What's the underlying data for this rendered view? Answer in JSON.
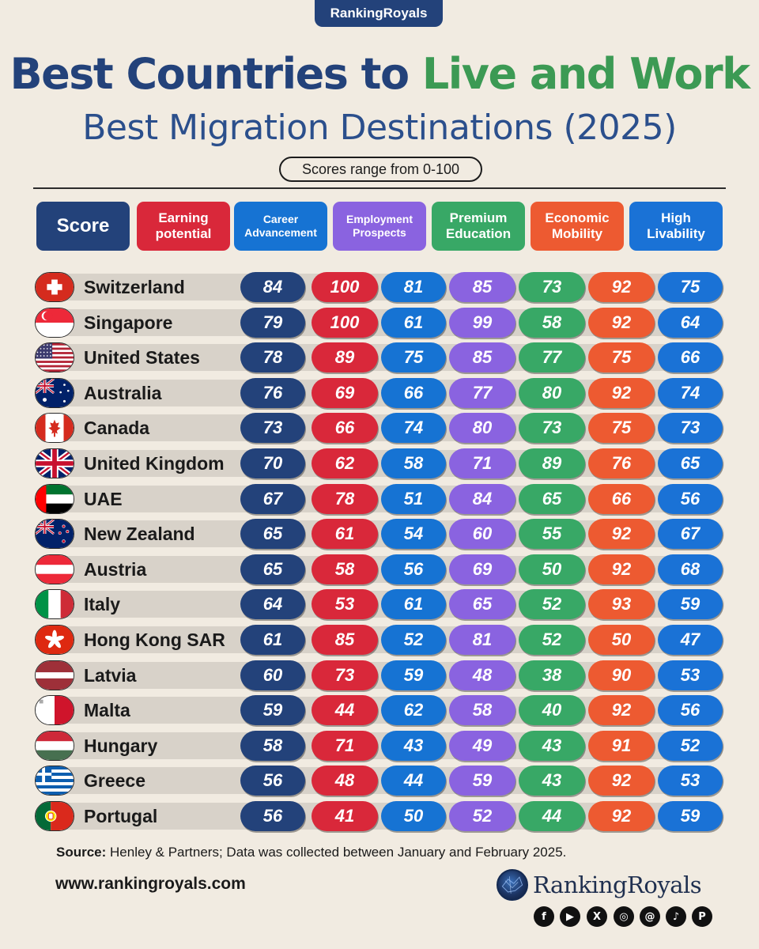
{
  "badge": "RankingRoyals",
  "title": {
    "part1": "Best Countries to ",
    "part2": "Live and Work"
  },
  "subtitle": "Best Migration Destinations (2025)",
  "range_note": "Scores range from 0-100",
  "colors": {
    "score": "#23427a",
    "earning": "#d9283a",
    "career": "#1673d3",
    "employment": "#8a63e0",
    "education": "#38a866",
    "mobility": "#ed5a31",
    "livability": "#1a72d6"
  },
  "source": {
    "label": "Source:",
    "text": " Henley & Partners; Data was collected between January and February 2025."
  },
  "website": "www.rankingroyals.com",
  "brand_name": "RankingRoyals",
  "social_icons": [
    "facebook-icon",
    "youtube-icon",
    "x-icon",
    "instagram-icon",
    "threads-icon",
    "tiktok-icon",
    "pinterest-icon"
  ],
  "chart_data": {
    "type": "table",
    "columns": [
      "Score",
      "Earning potential",
      "Career Advancement",
      "Employment Prospects",
      "Premium Education",
      "Economic Mobility",
      "High Livability"
    ],
    "column_lines": [
      [
        "Score"
      ],
      [
        "Earning",
        "potential"
      ],
      [
        "Career",
        "Advancement"
      ],
      [
        "Employment",
        "Prospects"
      ],
      [
        "Premium",
        "Education"
      ],
      [
        "Economic",
        "Mobility"
      ],
      [
        "High",
        "Livability"
      ]
    ],
    "rows": [
      {
        "country": "Switzerland",
        "flag": "switzerland-flag-icon",
        "values": [
          84,
          100,
          81,
          85,
          73,
          92,
          75
        ]
      },
      {
        "country": "Singapore",
        "flag": "singapore-flag-icon",
        "values": [
          79,
          100,
          61,
          99,
          58,
          92,
          64
        ]
      },
      {
        "country": "United States",
        "flag": "united-states-flag-icon",
        "values": [
          78,
          89,
          75,
          85,
          77,
          75,
          66
        ]
      },
      {
        "country": "Australia",
        "flag": "australia-flag-icon",
        "values": [
          76,
          69,
          66,
          77,
          80,
          92,
          74
        ]
      },
      {
        "country": "Canada",
        "flag": "canada-flag-icon",
        "values": [
          73,
          66,
          74,
          80,
          73,
          75,
          73
        ]
      },
      {
        "country": "United Kingdom",
        "flag": "united-kingdom-flag-icon",
        "values": [
          70,
          62,
          58,
          71,
          89,
          76,
          65
        ]
      },
      {
        "country": "UAE",
        "flag": "uae-flag-icon",
        "values": [
          67,
          78,
          51,
          84,
          65,
          66,
          56
        ]
      },
      {
        "country": "New Zealand",
        "flag": "new-zealand-flag-icon",
        "values": [
          65,
          61,
          54,
          60,
          55,
          92,
          67
        ]
      },
      {
        "country": "Austria",
        "flag": "austria-flag-icon",
        "values": [
          65,
          58,
          56,
          69,
          50,
          92,
          68
        ]
      },
      {
        "country": "Italy",
        "flag": "italy-flag-icon",
        "values": [
          64,
          53,
          61,
          65,
          52,
          93,
          59
        ]
      },
      {
        "country": "Hong Kong SAR",
        "flag": "hong-kong-flag-icon",
        "values": [
          61,
          85,
          52,
          81,
          52,
          50,
          47
        ]
      },
      {
        "country": "Latvia",
        "flag": "latvia-flag-icon",
        "values": [
          60,
          73,
          59,
          48,
          38,
          90,
          53
        ]
      },
      {
        "country": "Malta",
        "flag": "malta-flag-icon",
        "values": [
          59,
          44,
          62,
          58,
          40,
          92,
          56
        ]
      },
      {
        "country": "Hungary",
        "flag": "hungary-flag-icon",
        "values": [
          58,
          71,
          43,
          49,
          43,
          91,
          52
        ]
      },
      {
        "country": "Greece",
        "flag": "greece-flag-icon",
        "values": [
          56,
          48,
          44,
          59,
          43,
          92,
          53
        ]
      },
      {
        "country": "Portugal",
        "flag": "portugal-flag-icon",
        "values": [
          56,
          41,
          50,
          52,
          44,
          92,
          59
        ]
      }
    ]
  }
}
